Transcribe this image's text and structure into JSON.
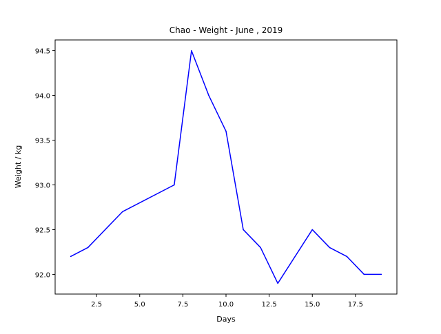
{
  "chart_data": {
    "type": "line",
    "title": "Chao - Weight - June , 2019",
    "xlabel": "Days",
    "ylabel": "Weight / kg",
    "xlim": [
      0.1,
      19.9
    ],
    "ylim": [
      91.78,
      94.62
    ],
    "x_ticks": [
      2.5,
      5.0,
      7.5,
      10.0,
      12.5,
      15.0,
      17.5
    ],
    "x_tick_labels": [
      "2.5",
      "5.0",
      "7.5",
      "10.0",
      "12.5",
      "15.0",
      "17.5"
    ],
    "y_ticks": [
      92.0,
      92.5,
      93.0,
      93.5,
      94.0,
      94.5
    ],
    "y_tick_labels": [
      "92.0",
      "92.5",
      "93.0",
      "93.5",
      "94.0",
      "94.5"
    ],
    "grid": false,
    "series": [
      {
        "color": "#0000ff",
        "x": [
          1,
          2,
          4,
          7,
          8,
          9,
          10,
          11,
          12,
          13,
          15,
          16,
          17,
          18,
          19
        ],
        "y": [
          92.2,
          92.3,
          92.7,
          93.0,
          94.5,
          94.0,
          93.6,
          92.5,
          92.3,
          91.9,
          92.5,
          92.3,
          92.2,
          92.0,
          92.0
        ]
      }
    ]
  }
}
